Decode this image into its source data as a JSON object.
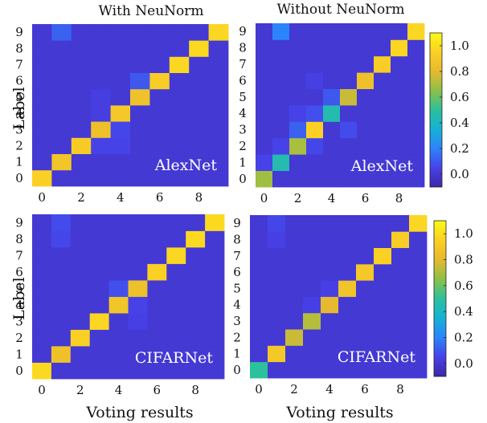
{
  "figure": {
    "column_titles": [
      "With NeuNorm",
      "Without NeuNorm"
    ],
    "ylabel": "Label",
    "xlabel": "Voting results"
  },
  "colors": {
    "scale": [
      "#3e26a8",
      "#4742e8",
      "#2c84fa",
      "#15b1d6",
      "#2dc09c",
      "#8cc047",
      "#e7b92f",
      "#fbd024",
      "#f9fb15"
    ]
  },
  "chart_data": [
    {
      "type": "heatmap",
      "column": "With NeuNorm",
      "net_label": "AlexNet",
      "x_ticks": [
        "0",
        "2",
        "4",
        "6",
        "8"
      ],
      "y_ticks": [
        "0",
        "1",
        "2",
        "3",
        "4",
        "5",
        "6",
        "7",
        "8",
        "9"
      ],
      "colorbar_ticks": [
        "1.0",
        "0.8",
        "0.6",
        "0.4",
        "0.2",
        "0.0"
      ],
      "clim": [
        -0.1,
        1.1
      ],
      "diagonal": [
        0.95,
        0.88,
        0.92,
        0.85,
        0.9,
        0.86,
        0.93,
        0.97,
        0.98,
        0.97
      ],
      "off_diagonal": [
        {
          "label": 9,
          "result": 1,
          "value": 0.12
        },
        {
          "label": 6,
          "result": 5,
          "value": 0.1
        },
        {
          "label": 3,
          "result": 4,
          "value": 0.06
        },
        {
          "label": 2,
          "result": 4,
          "value": 0.05
        },
        {
          "label": 2,
          "result": 3,
          "value": 0.05
        },
        {
          "label": 5,
          "result": 3,
          "value": 0.03
        },
        {
          "label": 4,
          "result": 3,
          "value": 0.03
        }
      ]
    },
    {
      "type": "heatmap",
      "column": "Without NeuNorm",
      "net_label": "AlexNet",
      "x_ticks": [
        "0",
        "2",
        "4",
        "6",
        "8"
      ],
      "y_ticks": [
        "0",
        "1",
        "2",
        "3",
        "4",
        "5",
        "6",
        "7",
        "8",
        "9"
      ],
      "colorbar_ticks": [
        "1.0",
        "0.8",
        "0.6",
        "0.4",
        "0.2",
        "0.0"
      ],
      "clim": [
        -0.1,
        1.1
      ],
      "diagonal": [
        0.68,
        0.45,
        0.7,
        0.95,
        0.45,
        0.75,
        0.85,
        0.93,
        0.97,
        0.97
      ],
      "off_diagonal": [
        {
          "label": 9,
          "result": 1,
          "value": 0.2
        },
        {
          "label": 3,
          "result": 2,
          "value": 0.12
        },
        {
          "label": 5,
          "result": 4,
          "value": 0.1
        },
        {
          "label": 4,
          "result": 3,
          "value": 0.08
        },
        {
          "label": 3,
          "result": 5,
          "value": 0.07
        },
        {
          "label": 2,
          "result": 3,
          "value": 0.06
        },
        {
          "label": 4,
          "result": 2,
          "value": 0.05
        },
        {
          "label": 2,
          "result": 1,
          "value": 0.05
        },
        {
          "label": 6,
          "result": 3,
          "value": 0.04
        },
        {
          "label": 1,
          "result": 0,
          "value": 0.05
        }
      ]
    },
    {
      "type": "heatmap",
      "column": "With NeuNorm",
      "net_label": "CIFARNet",
      "x_ticks": [
        "0",
        "2",
        "4",
        "6",
        "8"
      ],
      "y_ticks": [
        "0",
        "1",
        "2",
        "3",
        "4",
        "5",
        "6",
        "7",
        "8",
        "9"
      ],
      "colorbar_ticks": [
        "1.0",
        "0.8",
        "0.6",
        "0.4",
        "0.2",
        "0.0"
      ],
      "clim": [
        -0.1,
        1.1
      ],
      "diagonal": [
        0.98,
        0.85,
        0.95,
        0.97,
        0.88,
        0.85,
        0.95,
        0.97,
        0.98,
        0.98
      ],
      "off_diagonal": [
        {
          "label": 9,
          "result": 1,
          "value": 0.07
        },
        {
          "label": 8,
          "result": 1,
          "value": 0.06
        },
        {
          "label": 5,
          "result": 4,
          "value": 0.08
        },
        {
          "label": 4,
          "result": 5,
          "value": 0.05
        },
        {
          "label": 3,
          "result": 5,
          "value": 0.04
        }
      ]
    },
    {
      "type": "heatmap",
      "column": "Without NeuNorm",
      "net_label": "CIFARNet",
      "x_ticks": [
        "0",
        "2",
        "4",
        "6",
        "8"
      ],
      "y_ticks": [
        "0",
        "1",
        "2",
        "3",
        "4",
        "5",
        "6",
        "7",
        "8",
        "9"
      ],
      "colorbar_ticks": [
        "1.0",
        "0.8",
        "0.6",
        "0.4",
        "0.2",
        "0.0"
      ],
      "clim": [
        -0.1,
        1.1
      ],
      "diagonal": [
        0.5,
        0.9,
        0.75,
        0.72,
        0.8,
        0.87,
        0.9,
        0.95,
        0.93,
        0.97
      ],
      "off_diagonal": [
        {
          "label": 9,
          "result": 1,
          "value": 0.06
        },
        {
          "label": 8,
          "result": 1,
          "value": 0.04
        },
        {
          "label": 5,
          "result": 4,
          "value": 0.04
        },
        {
          "label": 4,
          "result": 3,
          "value": 0.04
        }
      ]
    }
  ]
}
